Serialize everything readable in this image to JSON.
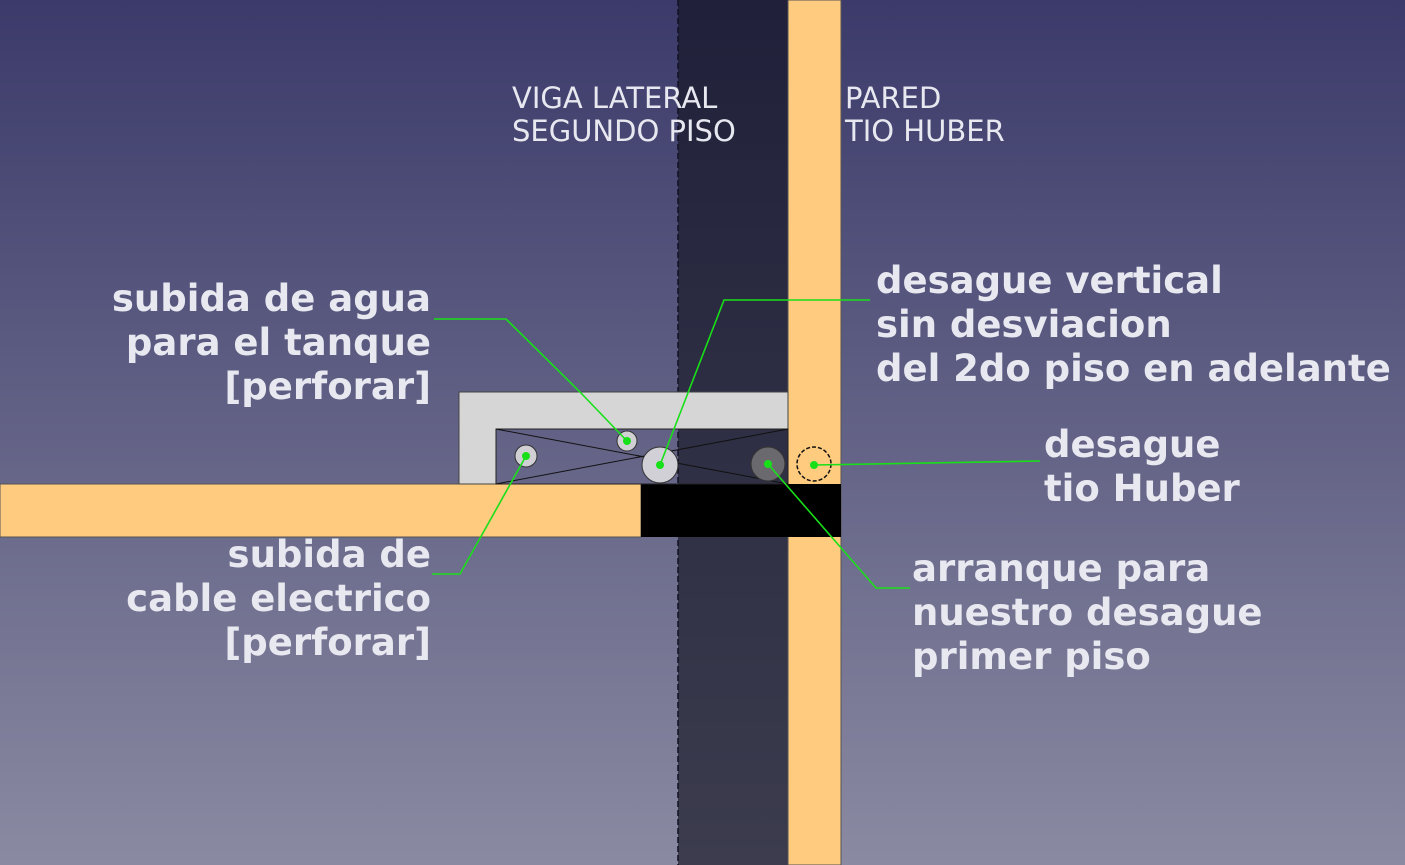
{
  "labels": {
    "beam_line1": "VIGA LATERAL",
    "beam_line2": "SEGUNDO PISO",
    "wall_line1": "PARED",
    "wall_line2": "TIO HUBER",
    "water_line1": "subida de agua",
    "water_line2": "para el tanque",
    "water_line3": "[perforar]",
    "drain_vertical_line1": "desague vertical",
    "drain_vertical_line2": "sin desviacion",
    "drain_vertical_line3": "del 2do piso en adelante",
    "drain_huber_line1": "desague",
    "drain_huber_line2": "tio Huber",
    "electric_line1": "subida de",
    "electric_line2": "cable electrico",
    "electric_line3": "[perforar]",
    "start_line1": "arranque para",
    "start_line2": "nuestro desague",
    "start_line3": "primer piso"
  },
  "colors": {
    "background_top": "#3b3a6a",
    "background_bottom": "#8a8aa2",
    "wall": "#ffcb7f",
    "beam": "#23223a",
    "shaft_frame": "#d6d6d6",
    "slab_black": "#000000",
    "leader": "#18e018",
    "text": "#e8e8f0"
  }
}
